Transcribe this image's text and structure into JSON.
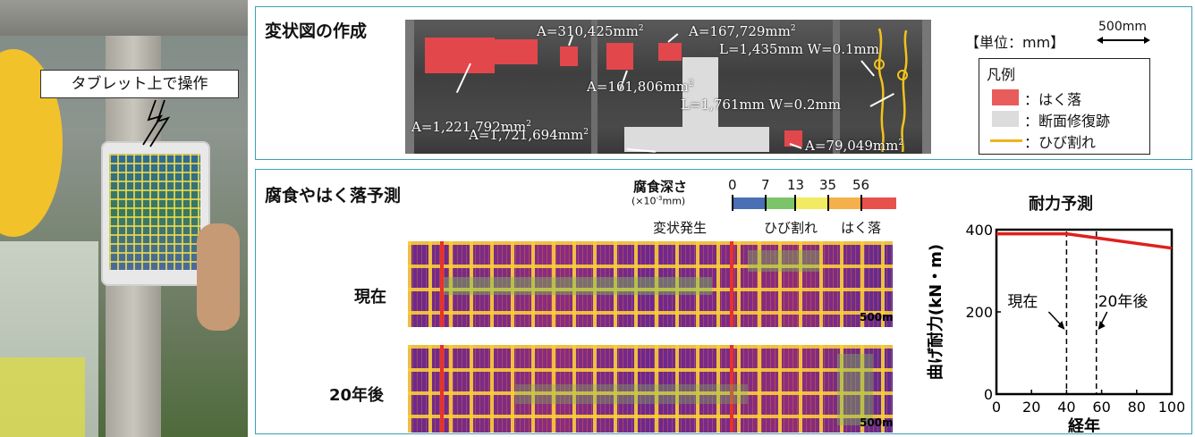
{
  "photo": {
    "callout": "タブレット上で操作"
  },
  "panel1": {
    "title": "変状図の作成",
    "annotations": [
      {
        "text": "A=1,221,792mm",
        "sup": "2"
      },
      {
        "text": "A=310,425mm",
        "sup": "2"
      },
      {
        "text": "A=161,806mm",
        "sup": "2"
      },
      {
        "text": "A=167,729mm",
        "sup": "2"
      },
      {
        "text": "L=1,435mm W=0.1mm",
        "sup": ""
      },
      {
        "text": "L=1,761mm W=0.2mm",
        "sup": ""
      },
      {
        "text": "A=1,721,694mm",
        "sup": "2"
      },
      {
        "text": "A=79,049mm",
        "sup": "2"
      }
    ],
    "unit_label": "【単位：mm】",
    "scale_label": "500mm",
    "legend": {
      "title": "凡例",
      "items": [
        {
          "label": "：はく落",
          "color": "#e85c5c"
        },
        {
          "label": "：断面修復跡",
          "color": "#dcdcdc"
        },
        {
          "label": "：ひび割れ",
          "color": "#f2b21c"
        }
      ]
    }
  },
  "panel2": {
    "title": "腐食やはく落予測",
    "colorbar": {
      "label": "腐食深さ",
      "unit": "(×10",
      "unit_exp": "-3",
      "unit_tail": "mm)",
      "ticks": [
        "0",
        "7",
        "13",
        "35",
        "56"
      ],
      "segments": [
        "#4a6fb5",
        "#7cc46a",
        "#f2ea60",
        "#f5b04c",
        "#e8504c"
      ],
      "events": [
        "変状発生",
        "ひび割れ",
        "はく落"
      ]
    },
    "rows": [
      {
        "label": "現在",
        "scale": "500m"
      },
      {
        "label": "20年後",
        "scale": "500m"
      }
    ]
  },
  "chart_data": {
    "type": "line",
    "title": "耐力予測",
    "xlabel": "経年",
    "ylabel": "曲げ耐力(kN・m)",
    "xlim": [
      0,
      100
    ],
    "ylim": [
      0,
      400
    ],
    "xticks": [
      "0",
      "20",
      "40",
      "60",
      "80",
      "100"
    ],
    "yticks": [
      "0",
      "200",
      "400"
    ],
    "series": [
      {
        "color": "#e0201c",
        "x": [
          0,
          40,
          100
        ],
        "y": [
          390,
          390,
          355
        ]
      }
    ],
    "markers": [
      {
        "label": "現在",
        "x": 40
      },
      {
        "label": "20年後",
        "x": 57
      }
    ]
  }
}
